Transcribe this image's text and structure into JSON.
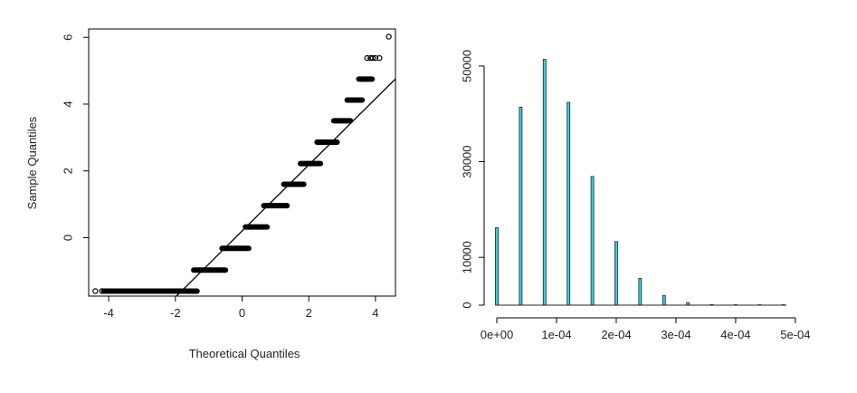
{
  "chart_data": [
    {
      "type": "scatter",
      "title": "",
      "xlabel": "Theoretical Quantiles",
      "ylabel": "Sample Quantiles",
      "xlim": [
        -4.6,
        4.6
      ],
      "ylim": [
        -1.75,
        6.25
      ],
      "xticks": [
        -4,
        -2,
        0,
        2,
        4
      ],
      "yticks": [
        0,
        2,
        4,
        6
      ],
      "xtick_labels": [
        "-4",
        "-2",
        "0",
        "2",
        "4"
      ],
      "ytick_labels": [
        "0",
        "2",
        "4",
        "6"
      ],
      "reference_line": {
        "slope": 0.99,
        "intercept": 0.2
      },
      "steps": [
        {
          "y": -1.6,
          "x0": -4.15,
          "x1": -1.35
        },
        {
          "y": -0.97,
          "x0": -1.45,
          "x1": -0.5
        },
        {
          "y": -0.32,
          "x0": -0.6,
          "x1": 0.2
        },
        {
          "y": 0.32,
          "x0": 0.1,
          "x1": 0.75
        },
        {
          "y": 0.96,
          "x0": 0.65,
          "x1": 1.35
        },
        {
          "y": 1.6,
          "x0": 1.25,
          "x1": 1.85
        },
        {
          "y": 2.22,
          "x0": 1.75,
          "x1": 2.35
        },
        {
          "y": 2.86,
          "x0": 2.25,
          "x1": 2.85
        },
        {
          "y": 3.5,
          "x0": 2.75,
          "x1": 3.25
        },
        {
          "y": 4.12,
          "x0": 3.15,
          "x1": 3.6
        },
        {
          "y": 4.75,
          "x0": 3.5,
          "x1": 3.9
        }
      ],
      "points": [
        {
          "x": -4.4,
          "y": -1.6
        },
        {
          "x": -4.2,
          "y": -1.6
        },
        {
          "x": 3.75,
          "y": 5.38
        },
        {
          "x": 3.85,
          "y": 5.38
        },
        {
          "x": 3.92,
          "y": 5.38
        },
        {
          "x": 4.0,
          "y": 5.38
        },
        {
          "x": 4.12,
          "y": 5.38
        },
        {
          "x": 4.4,
          "y": 6.02
        }
      ],
      "colors": {
        "points": "#000000",
        "line": "#000000"
      }
    },
    {
      "type": "bar",
      "title": "",
      "xlabel": "",
      "ylabel": "",
      "xlim": [
        0,
        0.000485
      ],
      "ylim": [
        0,
        51500
      ],
      "xticks": [
        0,
        0.0001,
        0.0002,
        0.0003,
        0.0004,
        0.0005
      ],
      "yticks": [
        0,
        10000,
        30000,
        50000
      ],
      "xtick_labels": [
        "0e+00",
        "1e-04",
        "2e-04",
        "3e-04",
        "4e-04",
        "5e-04"
      ],
      "ytick_labels": [
        "0",
        "10000",
        "30000",
        "50000"
      ],
      "bar_width": 1.8e-06,
      "x": [
        0,
        4e-05,
        8e-05,
        0.00012,
        0.00016,
        0.0002,
        0.00024,
        0.00028,
        0.00032,
        0.00036,
        0.0004,
        0.00044,
        0.00048
      ],
      "values": [
        16200,
        41400,
        51400,
        42400,
        26900,
        13300,
        5600,
        2000,
        550,
        120,
        30,
        8,
        2
      ],
      "colors": {
        "bar_fill": "#2fd5dc",
        "bar_stroke": "#222222"
      }
    }
  ]
}
